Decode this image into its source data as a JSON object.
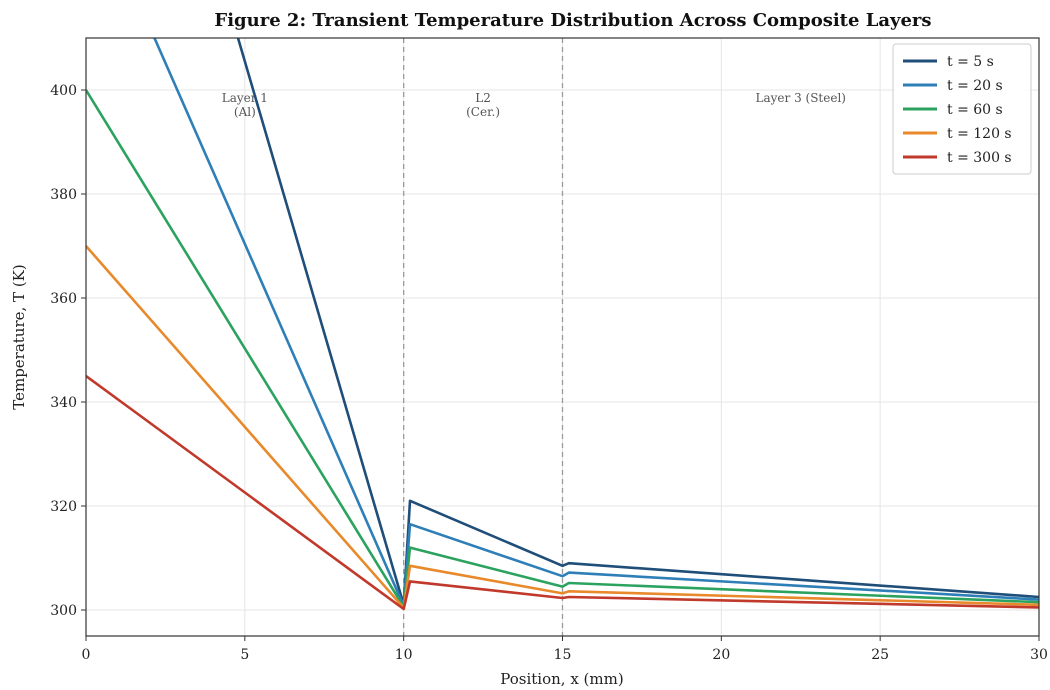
{
  "chart_data": {
    "type": "line",
    "title": "Figure 2: Transient Temperature Distribution Across Composite Layers",
    "xlabel": "Position, x (mm)",
    "ylabel": "Temperature, T (K)",
    "xlim": [
      0,
      30
    ],
    "ylim": [
      295,
      410
    ],
    "xticks": [
      0,
      5,
      10,
      15,
      20,
      25,
      30
    ],
    "yticks": [
      300,
      320,
      340,
      360,
      380,
      400
    ],
    "grid": true,
    "legend_position": "top-right",
    "layer_boundaries": [
      10,
      15
    ],
    "region_labels": [
      {
        "line1": "Layer 1",
        "line2": "(Al)",
        "x": 5
      },
      {
        "line1": "L2",
        "line2": "(Cer.)",
        "x": 12.5
      },
      {
        "line1": "Layer 3 (Steel)",
        "line2": "",
        "x": 22.5
      }
    ],
    "series": [
      {
        "name": "t = 5 s",
        "color": "#1f4e79",
        "x": [
          0,
          10,
          10.2,
          15,
          15.2,
          30
        ],
        "y": [
          510,
          301,
          321,
          308.5,
          309,
          302.5
        ]
      },
      {
        "name": "t = 20 s",
        "color": "#2e7fb8",
        "x": [
          0,
          10,
          10.2,
          15,
          15.2,
          30
        ],
        "y": [
          440,
          300.8,
          316.5,
          306.5,
          307.2,
          302
        ]
      },
      {
        "name": "t = 60 s",
        "color": "#2ca25f",
        "x": [
          0,
          10,
          10.2,
          15,
          15.2,
          30
        ],
        "y": [
          400,
          300.6,
          312,
          304.5,
          305.2,
          301.5
        ]
      },
      {
        "name": "t = 120 s",
        "color": "#e8892b",
        "x": [
          0,
          10,
          10.2,
          15,
          15.2,
          30
        ],
        "y": [
          370,
          300.4,
          308.5,
          303.2,
          303.6,
          301
        ]
      },
      {
        "name": "t = 300 s",
        "color": "#c0392b",
        "x": [
          0,
          10,
          10.2,
          15,
          15.2,
          30
        ],
        "y": [
          345,
          300.2,
          305.5,
          302.3,
          302.5,
          300.5
        ]
      }
    ]
  }
}
